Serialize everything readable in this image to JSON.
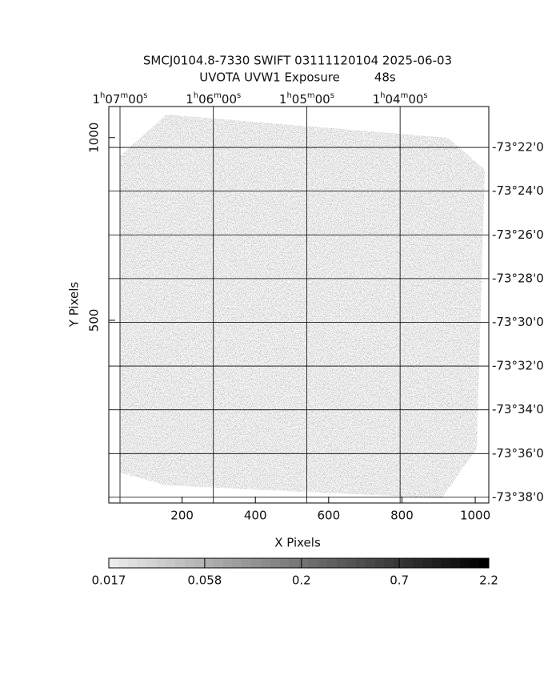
{
  "chart_data": {
    "type": "image",
    "title": "SMCJ0104.8-7330 SWIFT 03111120104 2025-06-03",
    "subtitle": "UVOTA UVW1 Exposure         48s",
    "x_label": "X Pixels",
    "y_label": "Y Pixels",
    "xlim": [
      0,
      1037
    ],
    "ylim": [
      0,
      1085
    ],
    "xticks": [
      200,
      400,
      600,
      800,
      1000
    ],
    "yticks": [
      500,
      1000
    ],
    "x2lim": [
      67.12,
      63.05
    ],
    "x2ticks": [
      {
        "value": 67,
        "label": "1h07m00s"
      },
      {
        "value": 66,
        "label": "1h06m00s"
      },
      {
        "value": 65,
        "label": "1h05m00s"
      },
      {
        "value": 64,
        "label": "1h04m00s"
      }
    ],
    "y2lim": [
      -4418.26,
      -4400.13
    ],
    "y2ticks": [
      {
        "value": -4402,
        "label": "-73°22'0"
      },
      {
        "value": -4404,
        "label": "-73°24'0"
      },
      {
        "value": -4406,
        "label": "-73°26'0"
      },
      {
        "value": -4408,
        "label": "-73°28'0"
      },
      {
        "value": -4410,
        "label": "-73°30'0"
      },
      {
        "value": -4412,
        "label": "-73°32'0"
      },
      {
        "value": -4414,
        "label": "-73°34'0"
      },
      {
        "value": -4416,
        "label": "-73°36'0"
      },
      {
        "value": -4418,
        "label": "-73°38'0"
      }
    ],
    "grid": true,
    "colorbar": {
      "scale": "log",
      "lim": [
        0.017,
        2.2
      ],
      "ticks": [
        0.017,
        0.058,
        0.2,
        0.7,
        2.2
      ]
    }
  }
}
